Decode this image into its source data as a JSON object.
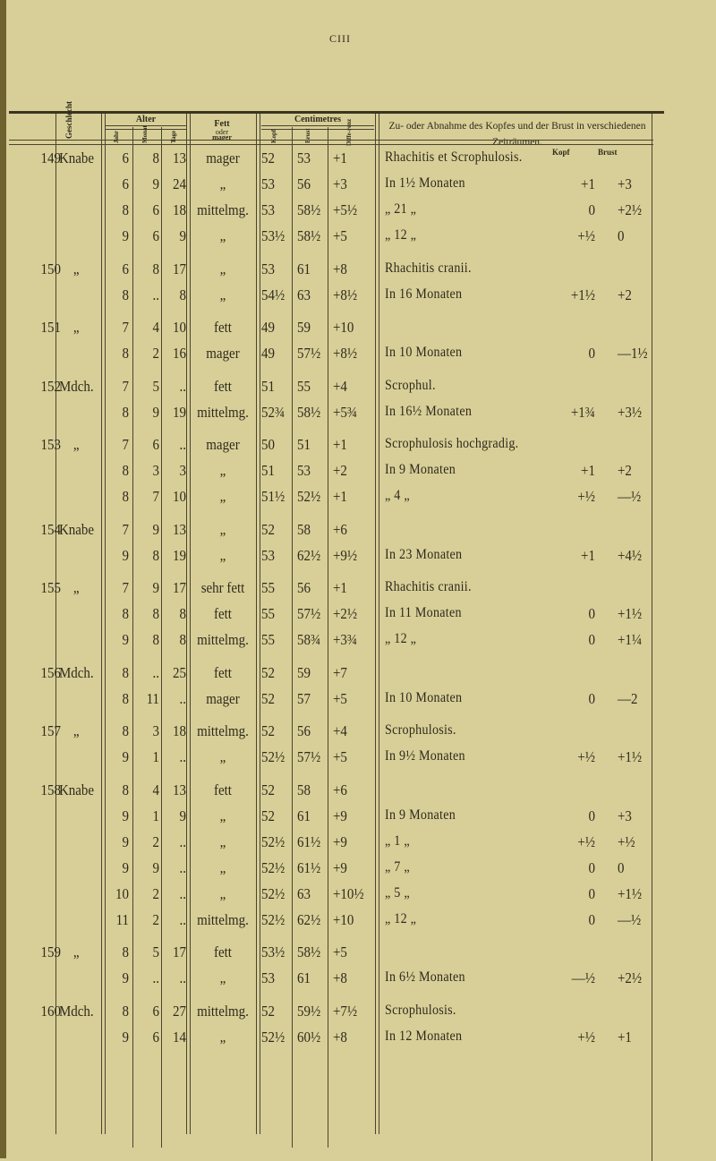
{
  "page_number": "CIII",
  "header": {
    "geschlecht": "Geschlecht",
    "alter": "Alter",
    "jahr": "Jahr",
    "monat": "Monat",
    "tage": "Tage",
    "fett_line1": "Fett",
    "fett_line2": "oder",
    "fett_line3": "mager",
    "centimetres": "Centimetres",
    "kopf": "Kopf",
    "brust": "Brust",
    "differenz": "Diffe-renz",
    "zunahme": "Zu- oder Abnahme des Kopfes und der Brust in verschiedenen Zeiträumen.",
    "sub_kopf": "Kopf",
    "sub_brust": "Brust"
  },
  "rows": [
    {
      "num": "149",
      "sex": "Knabe",
      "j": "6",
      "m": "8",
      "t": "13",
      "fett": "mager",
      "kopf": "52",
      "brust": "53",
      "diff": "+1",
      "note": "Rhachitis et Scrophulosis.",
      "nk": "",
      "nb": ""
    },
    {
      "num": "",
      "sex": "",
      "j": "6",
      "m": "9",
      "t": "24",
      "fett": "„",
      "kopf": "53",
      "brust": "56",
      "diff": "+3",
      "note": "In 1½ Monaten",
      "nk": "+1",
      "nb": "+3"
    },
    {
      "num": "",
      "sex": "",
      "j": "8",
      "m": "6",
      "t": "18",
      "fett": "mittelmg.",
      "kopf": "53",
      "brust": "58½",
      "diff": "+5½",
      "note": "„ 21 „",
      "nk": "0",
      "nb": "+2½"
    },
    {
      "num": "",
      "sex": "",
      "j": "9",
      "m": "6",
      "t": "9",
      "fett": "„",
      "kopf": "53½",
      "brust": "58½",
      "diff": "+5",
      "note": "„ 12 „",
      "nk": "+½",
      "nb": "0"
    },
    {
      "num": "150",
      "sex": "„",
      "j": "6",
      "m": "8",
      "t": "17",
      "fett": "„",
      "kopf": "53",
      "brust": "61",
      "diff": "+8",
      "note": "Rhachitis cranii.",
      "nk": "",
      "nb": ""
    },
    {
      "num": "",
      "sex": "",
      "j": "8",
      "m": "..",
      "t": "8",
      "fett": "„",
      "kopf": "54½",
      "brust": "63",
      "diff": "+8½",
      "note": "In 16 Monaten",
      "nk": "+1½",
      "nb": "+2"
    },
    {
      "num": "151",
      "sex": "„",
      "j": "7",
      "m": "4",
      "t": "10",
      "fett": "fett",
      "kopf": "49",
      "brust": "59",
      "diff": "+10",
      "note": "",
      "nk": "",
      "nb": ""
    },
    {
      "num": "",
      "sex": "",
      "j": "8",
      "m": "2",
      "t": "16",
      "fett": "mager",
      "kopf": "49",
      "brust": "57½",
      "diff": "+8½",
      "note": "In 10 Monaten",
      "nk": "0",
      "nb": "—1½"
    },
    {
      "num": "152",
      "sex": "Mdch.",
      "j": "7",
      "m": "5",
      "t": "..",
      "fett": "fett",
      "kopf": "51",
      "brust": "55",
      "diff": "+4",
      "note": "Scrophul.",
      "nk": "",
      "nb": ""
    },
    {
      "num": "",
      "sex": "",
      "j": "8",
      "m": "9",
      "t": "19",
      "fett": "mittelmg.",
      "kopf": "52¾",
      "brust": "58½",
      "diff": "+5¾",
      "note": "In 16½ Monaten",
      "nk": "+1¾",
      "nb": "+3½"
    },
    {
      "num": "153",
      "sex": "„",
      "j": "7",
      "m": "6",
      "t": "..",
      "fett": "mager",
      "kopf": "50",
      "brust": "51",
      "diff": "+1",
      "note": "Scrophulosis hochgradig.",
      "nk": "",
      "nb": ""
    },
    {
      "num": "",
      "sex": "",
      "j": "8",
      "m": "3",
      "t": "3",
      "fett": "„",
      "kopf": "51",
      "brust": "53",
      "diff": "+2",
      "note": "In 9 Monaten",
      "nk": "+1",
      "nb": "+2"
    },
    {
      "num": "",
      "sex": "",
      "j": "8",
      "m": "7",
      "t": "10",
      "fett": "„",
      "kopf": "51½",
      "brust": "52½",
      "diff": "+1",
      "note": "„ 4 „",
      "nk": "+½",
      "nb": "—½"
    },
    {
      "num": "154",
      "sex": "Knabe",
      "j": "7",
      "m": "9",
      "t": "13",
      "fett": "„",
      "kopf": "52",
      "brust": "58",
      "diff": "+6",
      "note": "",
      "nk": "",
      "nb": ""
    },
    {
      "num": "",
      "sex": "",
      "j": "9",
      "m": "8",
      "t": "19",
      "fett": "„",
      "kopf": "53",
      "brust": "62½",
      "diff": "+9½",
      "note": "In 23 Monaten",
      "nk": "+1",
      "nb": "+4½"
    },
    {
      "num": "155",
      "sex": "„",
      "j": "7",
      "m": "9",
      "t": "17",
      "fett": "sehr fett",
      "kopf": "55",
      "brust": "56",
      "diff": "+1",
      "note": "Rhachitis cranii.",
      "nk": "",
      "nb": ""
    },
    {
      "num": "",
      "sex": "",
      "j": "8",
      "m": "8",
      "t": "8",
      "fett": "fett",
      "kopf": "55",
      "brust": "57½",
      "diff": "+2½",
      "note": "In 11 Monaten",
      "nk": "0",
      "nb": "+1½"
    },
    {
      "num": "",
      "sex": "",
      "j": "9",
      "m": "8",
      "t": "8",
      "fett": "mittelmg.",
      "kopf": "55",
      "brust": "58¾",
      "diff": "+3¾",
      "note": "„ 12 „",
      "nk": "0",
      "nb": "+1¼"
    },
    {
      "num": "156",
      "sex": "Mdch.",
      "j": "8",
      "m": "..",
      "t": "25",
      "fett": "fett",
      "kopf": "52",
      "brust": "59",
      "diff": "+7",
      "note": "",
      "nk": "",
      "nb": ""
    },
    {
      "num": "",
      "sex": "",
      "j": "8",
      "m": "11",
      "t": "..",
      "fett": "mager",
      "kopf": "52",
      "brust": "57",
      "diff": "+5",
      "note": "In 10 Monaten",
      "nk": "0",
      "nb": "—2"
    },
    {
      "num": "157",
      "sex": "„",
      "j": "8",
      "m": "3",
      "t": "18",
      "fett": "mittelmg.",
      "kopf": "52",
      "brust": "56",
      "diff": "+4",
      "note": "Scrophulosis.",
      "nk": "",
      "nb": ""
    },
    {
      "num": "",
      "sex": "",
      "j": "9",
      "m": "1",
      "t": "..",
      "fett": "„",
      "kopf": "52½",
      "brust": "57½",
      "diff": "+5",
      "note": "In 9½ Monaten",
      "nk": "+½",
      "nb": "+1½"
    },
    {
      "num": "158",
      "sex": "Knabe",
      "j": "8",
      "m": "4",
      "t": "13",
      "fett": "fett",
      "kopf": "52",
      "brust": "58",
      "diff": "+6",
      "note": "",
      "nk": "",
      "nb": ""
    },
    {
      "num": "",
      "sex": "",
      "j": "9",
      "m": "1",
      "t": "9",
      "fett": "„",
      "kopf": "52",
      "brust": "61",
      "diff": "+9",
      "note": "In 9 Monaten",
      "nk": "0",
      "nb": "+3"
    },
    {
      "num": "",
      "sex": "",
      "j": "9",
      "m": "2",
      "t": "..",
      "fett": "„",
      "kopf": "52½",
      "brust": "61½",
      "diff": "+9",
      "note": "„ 1 „",
      "nk": "+½",
      "nb": "+½"
    },
    {
      "num": "",
      "sex": "",
      "j": "9",
      "m": "9",
      "t": "..",
      "fett": "„",
      "kopf": "52½",
      "brust": "61½",
      "diff": "+9",
      "note": "„ 7 „",
      "nk": "0",
      "nb": "0"
    },
    {
      "num": "",
      "sex": "",
      "j": "10",
      "m": "2",
      "t": "..",
      "fett": "„",
      "kopf": "52½",
      "brust": "63",
      "diff": "+10½",
      "note": "„ 5 „",
      "nk": "0",
      "nb": "+1½"
    },
    {
      "num": "",
      "sex": "",
      "j": "11",
      "m": "2",
      "t": "..",
      "fett": "mittelmg.",
      "kopf": "52½",
      "brust": "62½",
      "diff": "+10",
      "note": "„ 12 „",
      "nk": "0",
      "nb": "—½"
    },
    {
      "num": "159",
      "sex": "„",
      "j": "8",
      "m": "5",
      "t": "17",
      "fett": "fett",
      "kopf": "53½",
      "brust": "58½",
      "diff": "+5",
      "note": "",
      "nk": "",
      "nb": ""
    },
    {
      "num": "",
      "sex": "",
      "j": "9",
      "m": "..",
      "t": "..",
      "fett": "„",
      "kopf": "53",
      "brust": "61",
      "diff": "+8",
      "note": "In 6½ Monaten",
      "nk": "—½",
      "nb": "+2½"
    },
    {
      "num": "160",
      "sex": "Mdch.",
      "j": "8",
      "m": "6",
      "t": "27",
      "fett": "mittelmg.",
      "kopf": "52",
      "brust": "59½",
      "diff": "+7½",
      "note": "Scrophulosis.",
      "nk": "",
      "nb": ""
    },
    {
      "num": "",
      "sex": "",
      "j": "9",
      "m": "6",
      "t": "14",
      "fett": "„",
      "kopf": "52½",
      "brust": "60½",
      "diff": "+8",
      "note": "In 12 Monaten",
      "nk": "+½",
      "nb": "+1"
    }
  ]
}
